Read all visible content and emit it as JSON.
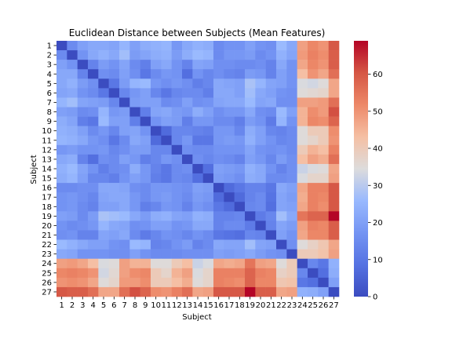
{
  "chart_data": {
    "type": "heatmap",
    "title": "Euclidean Distance between Subjects (Mean Features)",
    "xlabel": "Subject",
    "ylabel": "Subject",
    "labels": [
      "1",
      "2",
      "3",
      "4",
      "5",
      "6",
      "7",
      "8",
      "9",
      "10",
      "11",
      "12",
      "13",
      "14",
      "15",
      "16",
      "17",
      "18",
      "19",
      "20",
      "21",
      "22",
      "23",
      "24",
      "25",
      "26",
      "27"
    ],
    "colorscale": "coolwarm",
    "vmin": 0,
    "vmax": 69,
    "colorbar_ticks": [
      0,
      10,
      20,
      30,
      40,
      50,
      60
    ],
    "values": [
      [
        0,
        15,
        20,
        22,
        22,
        21,
        25,
        20,
        23,
        24,
        25,
        18,
        22,
        24,
        23,
        15,
        17,
        17,
        20,
        17,
        16,
        26,
        22,
        48,
        52,
        50,
        60
      ],
      [
        15,
        0,
        17,
        22,
        24,
        22,
        27,
        19,
        21,
        23,
        24,
        19,
        23,
        26,
        25,
        15,
        18,
        18,
        19,
        15,
        17,
        24,
        21,
        49,
        53,
        51,
        59
      ],
      [
        20,
        17,
        0,
        13,
        19,
        17,
        21,
        15,
        12,
        20,
        22,
        17,
        13,
        21,
        20,
        16,
        16,
        15,
        15,
        16,
        13,
        22,
        17,
        47,
        52,
        50,
        59
      ],
      [
        22,
        22,
        13,
        0,
        16,
        15,
        20,
        16,
        10,
        15,
        18,
        17,
        8,
        17,
        14,
        16,
        14,
        13,
        19,
        18,
        13,
        20,
        17,
        43,
        50,
        47,
        56
      ],
      [
        22,
        24,
        19,
        16,
        0,
        10,
        19,
        25,
        26,
        18,
        16,
        18,
        16,
        12,
        14,
        22,
        21,
        20,
        28,
        25,
        21,
        20,
        17,
        34,
        33,
        35,
        47
      ],
      [
        21,
        22,
        17,
        15,
        10,
        0,
        14,
        18,
        20,
        14,
        10,
        14,
        15,
        15,
        12,
        22,
        22,
        20,
        27,
        22,
        20,
        17,
        16,
        35,
        36,
        37,
        47
      ],
      [
        25,
        27,
        21,
        20,
        19,
        14,
        0,
        19,
        20,
        20,
        15,
        16,
        20,
        16,
        17,
        21,
        22,
        22,
        26,
        21,
        22,
        16,
        16,
        48,
        48,
        49,
        56
      ],
      [
        20,
        19,
        15,
        16,
        25,
        18,
        19,
        0,
        12,
        21,
        22,
        19,
        18,
        23,
        20,
        16,
        18,
        18,
        22,
        16,
        15,
        26,
        20,
        45,
        51,
        49,
        61
      ],
      [
        23,
        21,
        12,
        10,
        26,
        20,
        20,
        12,
        0,
        17,
        20,
        19,
        12,
        18,
        18,
        15,
        15,
        12,
        19,
        17,
        11,
        25,
        17,
        45,
        52,
        51,
        58
      ],
      [
        24,
        23,
        20,
        15,
        18,
        14,
        20,
        21,
        17,
        0,
        7,
        14,
        14,
        13,
        12,
        18,
        18,
        14,
        23,
        20,
        14,
        13,
        15,
        35,
        40,
        40,
        51
      ],
      [
        25,
        24,
        22,
        18,
        16,
        10,
        15,
        22,
        20,
        7,
        0,
        14,
        18,
        10,
        10,
        18,
        19,
        18,
        24,
        20,
        17,
        14,
        15,
        35,
        37,
        40,
        50
      ],
      [
        18,
        19,
        17,
        17,
        18,
        14,
        16,
        19,
        19,
        14,
        14,
        0,
        16,
        15,
        15,
        17,
        17,
        17,
        21,
        17,
        16,
        17,
        15,
        40,
        45,
        43,
        53
      ],
      [
        22,
        23,
        13,
        8,
        16,
        15,
        20,
        18,
        12,
        14,
        18,
        16,
        0,
        16,
        14,
        16,
        15,
        13,
        20,
        18,
        14,
        19,
        16,
        43,
        48,
        46,
        56
      ],
      [
        24,
        26,
        21,
        17,
        12,
        15,
        16,
        23,
        18,
        13,
        10,
        15,
        16,
        0,
        8,
        20,
        19,
        18,
        24,
        22,
        17,
        13,
        16,
        32,
        34,
        35,
        47
      ],
      [
        23,
        25,
        20,
        14,
        14,
        12,
        17,
        20,
        18,
        12,
        10,
        15,
        14,
        8,
        0,
        19,
        18,
        16,
        23,
        22,
        15,
        15,
        16,
        34,
        37,
        37,
        48
      ],
      [
        15,
        15,
        16,
        16,
        22,
        22,
        21,
        16,
        15,
        18,
        18,
        17,
        16,
        20,
        19,
        0,
        7,
        10,
        13,
        13,
        10,
        22,
        20,
        47,
        53,
        53,
        60
      ],
      [
        17,
        18,
        16,
        14,
        21,
        22,
        22,
        18,
        15,
        18,
        19,
        17,
        15,
        19,
        18,
        7,
        0,
        7,
        13,
        15,
        9,
        21,
        19,
        46,
        53,
        52,
        60
      ],
      [
        17,
        18,
        15,
        13,
        20,
        20,
        22,
        18,
        12,
        14,
        18,
        17,
        13,
        18,
        16,
        10,
        7,
        0,
        14,
        15,
        8,
        21,
        20,
        47,
        53,
        51,
        60
      ],
      [
        20,
        19,
        15,
        19,
        28,
        27,
        26,
        22,
        19,
        23,
        24,
        21,
        20,
        24,
        23,
        13,
        13,
        14,
        0,
        11,
        14,
        27,
        22,
        55,
        58,
        58,
        69
      ],
      [
        17,
        15,
        16,
        18,
        25,
        22,
        21,
        16,
        17,
        20,
        20,
        17,
        18,
        22,
        22,
        13,
        15,
        15,
        11,
        0,
        13,
        21,
        19,
        48,
        53,
        52,
        59
      ],
      [
        16,
        17,
        13,
        13,
        21,
        20,
        22,
        15,
        11,
        14,
        17,
        16,
        14,
        17,
        15,
        10,
        9,
        8,
        14,
        13,
        0,
        20,
        17,
        47,
        52,
        52,
        59
      ],
      [
        26,
        24,
        22,
        20,
        20,
        17,
        16,
        26,
        25,
        13,
        14,
        17,
        19,
        13,
        15,
        22,
        21,
        21,
        27,
        21,
        20,
        0,
        16,
        35,
        38,
        41,
        47
      ],
      [
        22,
        21,
        17,
        17,
        17,
        16,
        16,
        20,
        17,
        15,
        15,
        15,
        16,
        16,
        16,
        20,
        19,
        20,
        22,
        19,
        17,
        16,
        0,
        40,
        40,
        42,
        48
      ],
      [
        48,
        49,
        47,
        43,
        34,
        35,
        48,
        45,
        45,
        35,
        35,
        40,
        43,
        32,
        34,
        47,
        46,
        47,
        55,
        48,
        47,
        35,
        40,
        0,
        14,
        10,
        24
      ],
      [
        52,
        53,
        52,
        50,
        33,
        36,
        48,
        51,
        52,
        40,
        37,
        45,
        48,
        34,
        37,
        53,
        53,
        53,
        58,
        53,
        52,
        38,
        40,
        14,
        0,
        8,
        23
      ],
      [
        50,
        51,
        50,
        47,
        35,
        37,
        49,
        49,
        51,
        40,
        40,
        43,
        46,
        35,
        37,
        53,
        52,
        51,
        58,
        52,
        52,
        41,
        42,
        10,
        8,
        0,
        20
      ],
      [
        60,
        59,
        59,
        56,
        47,
        47,
        56,
        61,
        58,
        51,
        50,
        53,
        56,
        47,
        48,
        60,
        60,
        60,
        69,
        59,
        59,
        47,
        48,
        24,
        23,
        20,
        0
      ]
    ]
  }
}
